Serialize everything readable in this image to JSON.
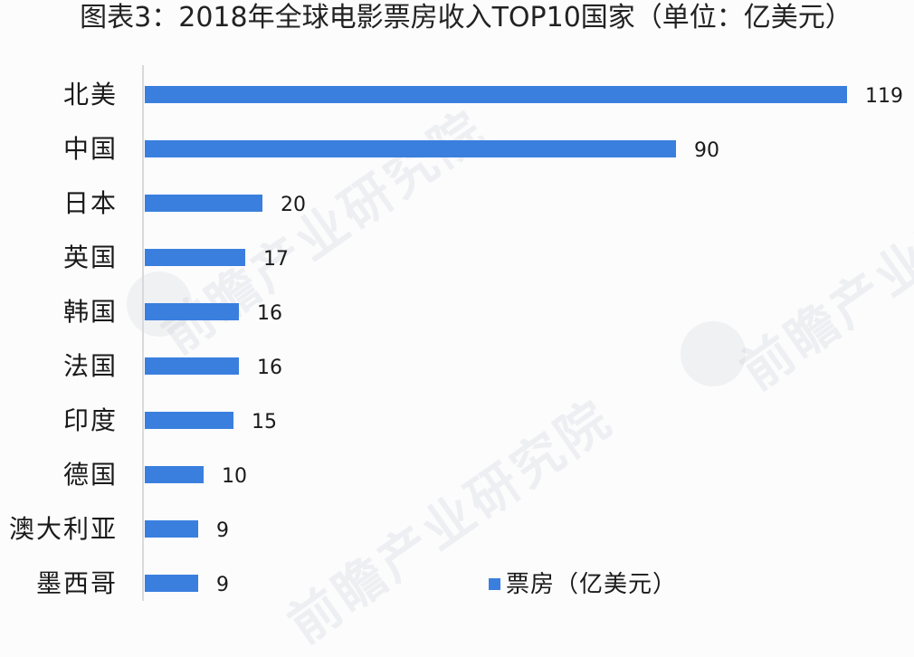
{
  "title": "图表3：2018年全球电影票房收入TOP10国家（单位：亿美元）",
  "legend": {
    "label": "票房（亿美元）",
    "color": "#3a7fde"
  },
  "watermark": {
    "text": "前瞻产业研究院"
  },
  "rows": [
    {
      "label": "北美",
      "value": "119"
    },
    {
      "label": "中国",
      "value": "90"
    },
    {
      "label": "日本",
      "value": "20"
    },
    {
      "label": "英国",
      "value": "17"
    },
    {
      "label": "韩国",
      "value": "16"
    },
    {
      "label": "法国",
      "value": "16"
    },
    {
      "label": "印度",
      "value": "15"
    },
    {
      "label": "德国",
      "value": "10"
    },
    {
      "label": "澳大利亚",
      "value": "9"
    },
    {
      "label": "墨西哥",
      "value": "9"
    }
  ],
  "chart_data": {
    "type": "bar",
    "orientation": "horizontal",
    "title": "图表3：2018年全球电影票房收入TOP10国家（单位：亿美元）",
    "categories": [
      "北美",
      "中国",
      "日本",
      "英国",
      "韩国",
      "法国",
      "印度",
      "德国",
      "澳大利亚",
      "墨西哥"
    ],
    "series": [
      {
        "name": "票房（亿美元）",
        "values": [
          119,
          90,
          20,
          17,
          16,
          16,
          15,
          10,
          9,
          9
        ],
        "color": "#3a7fde"
      }
    ],
    "xlabel": "",
    "ylabel": "",
    "xlim": [
      0,
      120
    ],
    "grid": false,
    "data_labels": true,
    "legend_position": "bottom-right"
  }
}
